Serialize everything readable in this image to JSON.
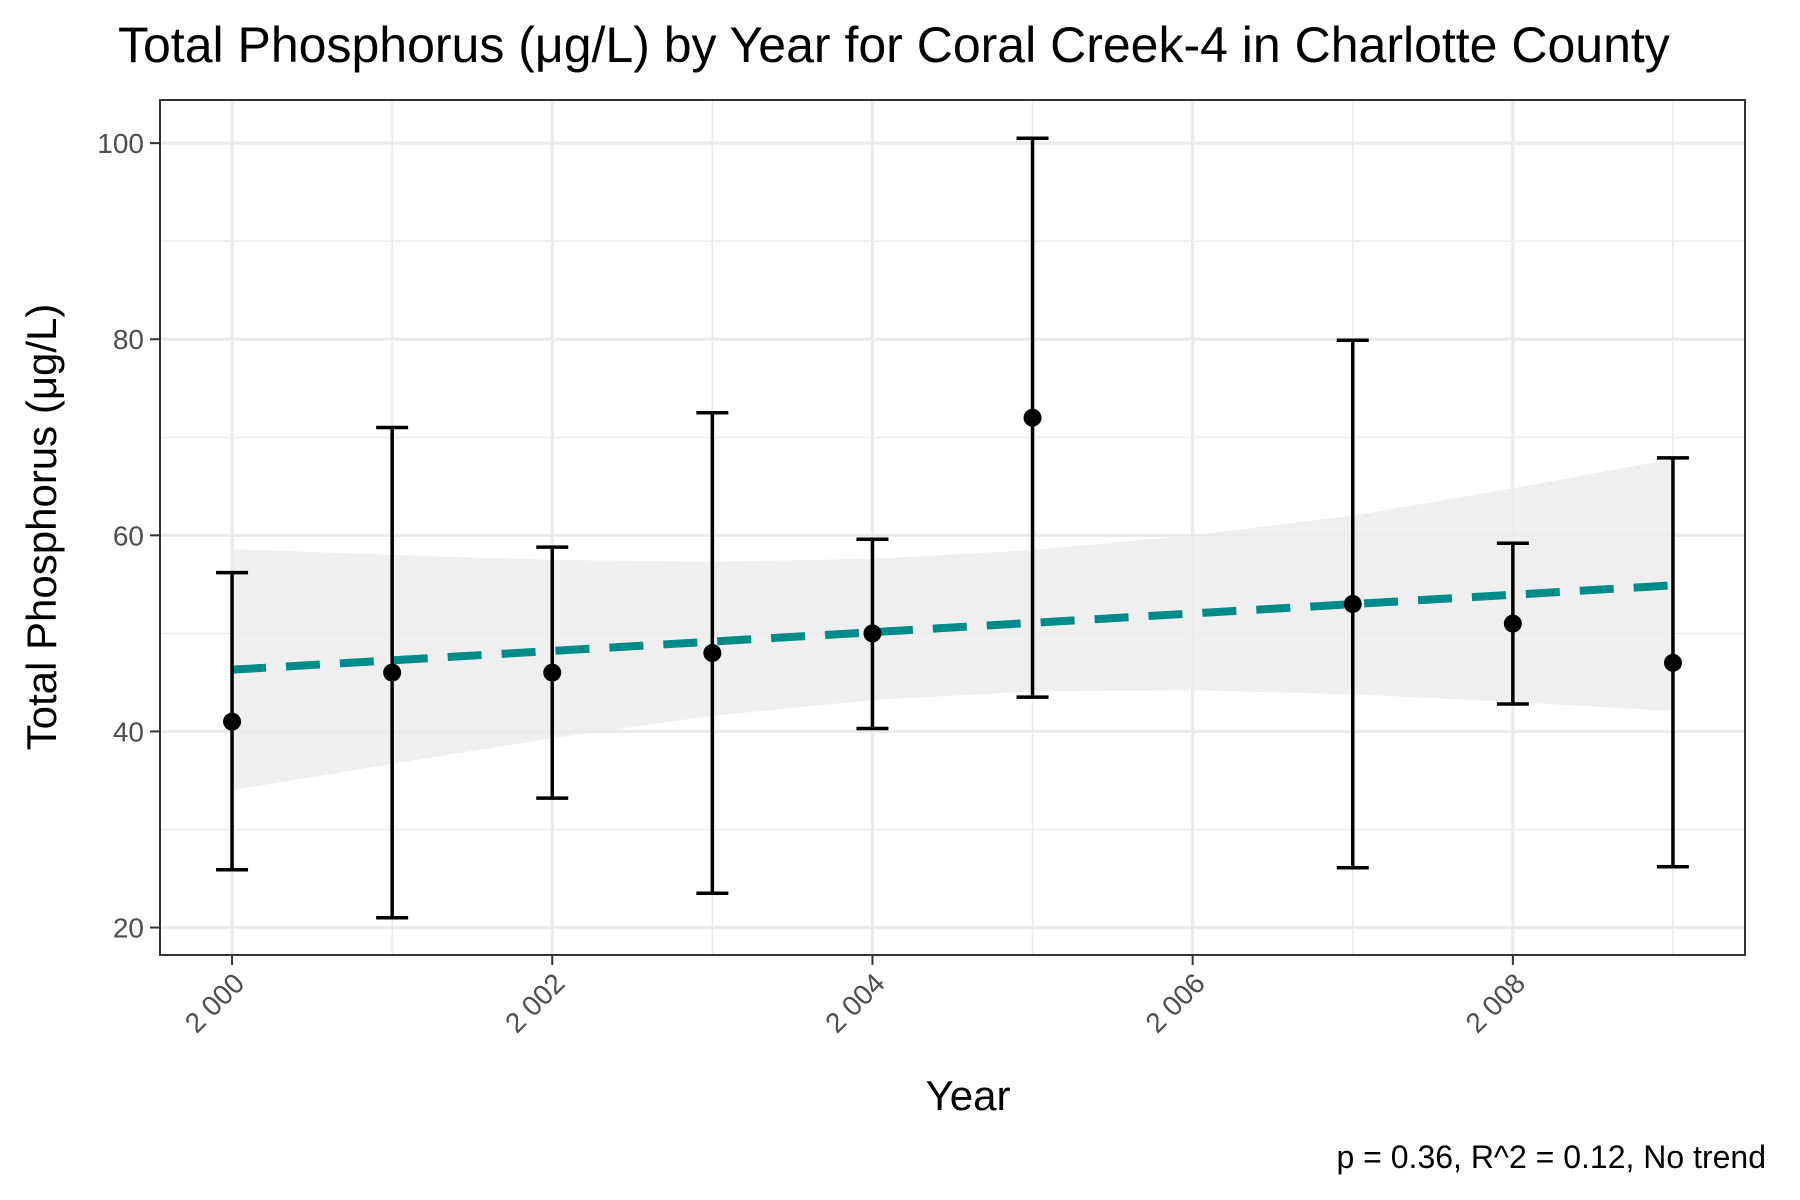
{
  "chart_data": {
    "type": "scatter",
    "title": "Total Phosphorus (μg/L) by Year for Coral Creek-4 in Charlotte County",
    "xlabel": "Year",
    "ylabel": "Total Phosphorus (μg/L)",
    "caption": "p = 0.36, R^2 = 0.12, No trend",
    "xlim": [
      1999.55,
      2009.45
    ],
    "ylim": [
      17.2,
      104.4
    ],
    "x_ticks": [
      2000,
      2002,
      2004,
      2006,
      2008
    ],
    "x_tick_labels": [
      "2 000",
      "2 002",
      "2 004",
      "2 006",
      "2 008"
    ],
    "x_minor_ticks": [
      2001,
      2003,
      2005,
      2007,
      2009
    ],
    "y_ticks": [
      20,
      40,
      60,
      80,
      100
    ],
    "y_tick_labels": [
      "20",
      "40",
      "60",
      "80",
      "100"
    ],
    "y_minor_ticks": [
      30,
      50,
      70,
      90
    ],
    "grid": true,
    "points": [
      {
        "x": 2000,
        "y": 41,
        "ymin": 25.9,
        "ymax": 56.2
      },
      {
        "x": 2001,
        "y": 46,
        "ymin": 21.0,
        "ymax": 71.0
      },
      {
        "x": 2002,
        "y": 46,
        "ymin": 33.2,
        "ymax": 58.8
      },
      {
        "x": 2003,
        "y": 48,
        "ymin": 23.5,
        "ymax": 72.5
      },
      {
        "x": 2004,
        "y": 50,
        "ymin": 40.3,
        "ymax": 59.6
      },
      {
        "x": 2005,
        "y": 72,
        "ymin": 43.5,
        "ymax": 100.5
      },
      {
        "x": 2007,
        "y": 53,
        "ymin": 26.1,
        "ymax": 79.9
      },
      {
        "x": 2008,
        "y": 51,
        "ymin": 42.8,
        "ymax": 59.2
      },
      {
        "x": 2009,
        "y": 47,
        "ymin": 26.2,
        "ymax": 67.9
      }
    ],
    "trend": {
      "x": [
        2000,
        2009
      ],
      "y": [
        46.3,
        54.9
      ]
    },
    "ribbon": {
      "x": [
        2000,
        2001,
        2002,
        2003,
        2004,
        2005,
        2006,
        2007,
        2008,
        2009
      ],
      "upper": [
        58.6,
        58.0,
        57.5,
        57.3,
        57.6,
        58.5,
        60.0,
        62.0,
        64.8,
        67.8
      ],
      "lower": [
        34.0,
        36.7,
        39.3,
        41.6,
        43.2,
        44.1,
        44.2,
        43.8,
        43.0,
        42.1
      ]
    },
    "colors": {
      "trend": "#008b8b",
      "points": "#000000",
      "ribbon": "#ebebeb"
    }
  }
}
